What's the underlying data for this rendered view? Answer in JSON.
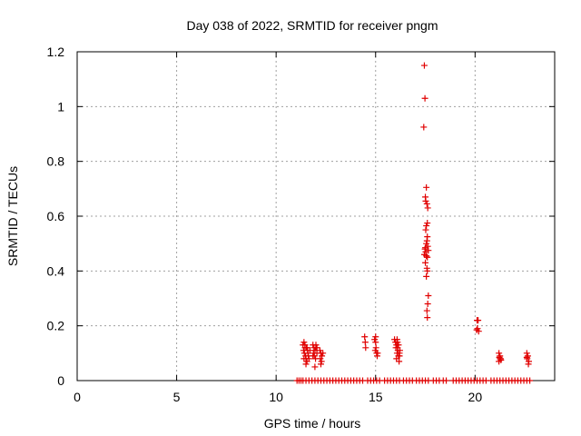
{
  "chart_data": {
    "type": "scatter",
    "title": "Day 038 of 2022, SRMTID for receiver pngm",
    "xlabel": "GPS time / hours",
    "ylabel": "SRMTID / TECUs",
    "xlim": [
      0,
      24
    ],
    "ylim": [
      0,
      1.2
    ],
    "x_ticks": [
      0,
      5,
      10,
      15,
      20
    ],
    "x_tick_labels": [
      "0",
      "5",
      "10",
      "15",
      "20"
    ],
    "y_ticks": [
      0,
      0.2,
      0.4,
      0.6,
      0.8,
      1.0,
      1.2
    ],
    "y_tick_labels": [
      "0",
      "0.2",
      "0.4",
      "0.6",
      "0.8",
      "1",
      "1.2"
    ],
    "grid": true,
    "marker": "plus",
    "color": "#e00000",
    "series": [
      {
        "points": [
          [
            11.05,
            0
          ],
          [
            11.15,
            0
          ],
          [
            11.25,
            0
          ],
          [
            11.35,
            0
          ],
          [
            11.5,
            0
          ],
          [
            11.65,
            0
          ],
          [
            11.8,
            0
          ],
          [
            11.95,
            0
          ],
          [
            12.1,
            0
          ],
          [
            12.25,
            0
          ],
          [
            12.4,
            0
          ],
          [
            12.55,
            0
          ],
          [
            12.7,
            0
          ],
          [
            12.85,
            0
          ],
          [
            13.0,
            0
          ],
          [
            13.15,
            0
          ],
          [
            13.3,
            0
          ],
          [
            13.45,
            0
          ],
          [
            13.6,
            0
          ],
          [
            13.75,
            0
          ],
          [
            13.9,
            0
          ],
          [
            14.05,
            0
          ],
          [
            14.2,
            0
          ],
          [
            14.35,
            0
          ],
          [
            14.6,
            0
          ],
          [
            14.75,
            0
          ],
          [
            14.9,
            0
          ],
          [
            15.05,
            0
          ],
          [
            15.2,
            0
          ],
          [
            15.45,
            0
          ],
          [
            15.6,
            0
          ],
          [
            15.75,
            0
          ],
          [
            15.9,
            0
          ],
          [
            16.05,
            0
          ],
          [
            16.2,
            0
          ],
          [
            16.4,
            0
          ],
          [
            16.55,
            0
          ],
          [
            16.7,
            0
          ],
          [
            16.85,
            0
          ],
          [
            17.05,
            0
          ],
          [
            17.2,
            0
          ],
          [
            17.35,
            0
          ],
          [
            17.5,
            0
          ],
          [
            17.65,
            0
          ],
          [
            17.9,
            0
          ],
          [
            18.05,
            0
          ],
          [
            18.2,
            0
          ],
          [
            18.4,
            0
          ],
          [
            18.55,
            0
          ],
          [
            18.9,
            0
          ],
          [
            19.05,
            0
          ],
          [
            19.2,
            0
          ],
          [
            19.35,
            0
          ],
          [
            19.5,
            0
          ],
          [
            19.65,
            0
          ],
          [
            19.8,
            0
          ],
          [
            19.95,
            0
          ],
          [
            20.1,
            0
          ],
          [
            20.25,
            0
          ],
          [
            20.4,
            0
          ],
          [
            20.55,
            0
          ],
          [
            20.8,
            0
          ],
          [
            20.95,
            0
          ],
          [
            21.1,
            0
          ],
          [
            21.25,
            0
          ],
          [
            21.4,
            0
          ],
          [
            21.55,
            0
          ],
          [
            21.7,
            0
          ],
          [
            21.85,
            0
          ],
          [
            22.0,
            0
          ],
          [
            22.15,
            0
          ],
          [
            22.3,
            0
          ],
          [
            22.45,
            0
          ],
          [
            22.6,
            0
          ],
          [
            22.75,
            0
          ],
          [
            11.35,
            0.13
          ],
          [
            11.4,
            0.14
          ],
          [
            11.45,
            0.12
          ],
          [
            11.38,
            0.11
          ],
          [
            11.42,
            0.1
          ],
          [
            11.48,
            0.09
          ],
          [
            11.4,
            0.08
          ],
          [
            11.55,
            0.07
          ],
          [
            11.5,
            0.08
          ],
          [
            11.6,
            0.1
          ],
          [
            11.45,
            0.13
          ],
          [
            11.52,
            0.12
          ],
          [
            11.58,
            0.11
          ],
          [
            11.62,
            0.09
          ],
          [
            11.55,
            0.12
          ],
          [
            11.65,
            0.08
          ],
          [
            11.5,
            0.06
          ],
          [
            11.7,
            0.11
          ],
          [
            11.85,
            0.13
          ],
          [
            11.9,
            0.12
          ],
          [
            11.95,
            0.11
          ],
          [
            12.0,
            0.12
          ],
          [
            11.88,
            0.1
          ],
          [
            11.92,
            0.09
          ],
          [
            11.98,
            0.08
          ],
          [
            12.05,
            0.1
          ],
          [
            11.95,
            0.05
          ],
          [
            12.0,
            0.13
          ],
          [
            12.05,
            0.12
          ],
          [
            11.85,
            0.09
          ],
          [
            12.2,
            0.11
          ],
          [
            12.25,
            0.1
          ],
          [
            12.3,
            0.09
          ],
          [
            12.22,
            0.08
          ],
          [
            12.28,
            0.07
          ],
          [
            12.35,
            0.1
          ],
          [
            12.25,
            0.06
          ],
          [
            14.45,
            0.16
          ],
          [
            14.48,
            0.14
          ],
          [
            14.5,
            0.12
          ],
          [
            14.95,
            0.15
          ],
          [
            15.0,
            0.14
          ],
          [
            15.02,
            0.12
          ],
          [
            14.98,
            0.11
          ],
          [
            15.05,
            0.1
          ],
          [
            15.08,
            0.09
          ],
          [
            15.0,
            0.16
          ],
          [
            15.1,
            0.1
          ],
          [
            15.95,
            0.15
          ],
          [
            16.0,
            0.14
          ],
          [
            16.05,
            0.13
          ],
          [
            16.1,
            0.12
          ],
          [
            16.12,
            0.11
          ],
          [
            16.08,
            0.1
          ],
          [
            16.15,
            0.09
          ],
          [
            16.2,
            0.1
          ],
          [
            16.05,
            0.08
          ],
          [
            16.18,
            0.07
          ],
          [
            16.1,
            0.14
          ],
          [
            16.02,
            0.12
          ],
          [
            16.22,
            0.11
          ],
          [
            16.15,
            0.13
          ],
          [
            16.08,
            0.15
          ],
          [
            16.2,
            0.09
          ],
          [
            17.45,
            1.15
          ],
          [
            17.48,
            1.03
          ],
          [
            17.42,
            0.925
          ],
          [
            17.55,
            0.705
          ],
          [
            17.5,
            0.67
          ],
          [
            17.52,
            0.655
          ],
          [
            17.58,
            0.645
          ],
          [
            17.62,
            0.63
          ],
          [
            17.6,
            0.575
          ],
          [
            17.55,
            0.565
          ],
          [
            17.52,
            0.55
          ],
          [
            17.6,
            0.525
          ],
          [
            17.58,
            0.51
          ],
          [
            17.55,
            0.5
          ],
          [
            17.62,
            0.49
          ],
          [
            17.5,
            0.485
          ],
          [
            17.48,
            0.48
          ],
          [
            17.65,
            0.475
          ],
          [
            17.52,
            0.47
          ],
          [
            17.45,
            0.46
          ],
          [
            17.55,
            0.455
          ],
          [
            17.6,
            0.45
          ],
          [
            17.5,
            0.43
          ],
          [
            17.58,
            0.41
          ],
          [
            17.6,
            0.4
          ],
          [
            17.55,
            0.38
          ],
          [
            17.65,
            0.31
          ],
          [
            17.62,
            0.28
          ],
          [
            17.58,
            0.255
          ],
          [
            17.6,
            0.23
          ],
          [
            20.1,
            0.22
          ],
          [
            20.15,
            0.22
          ],
          [
            20.12,
            0.19
          ],
          [
            20.18,
            0.18
          ],
          [
            20.08,
            0.185
          ],
          [
            21.2,
            0.1
          ],
          [
            21.25,
            0.09
          ],
          [
            21.22,
            0.085
          ],
          [
            21.28,
            0.08
          ],
          [
            21.3,
            0.075
          ],
          [
            21.2,
            0.07
          ],
          [
            21.25,
            0.08
          ],
          [
            22.6,
            0.1
          ],
          [
            22.65,
            0.09
          ],
          [
            22.62,
            0.08
          ],
          [
            22.7,
            0.07
          ],
          [
            22.68,
            0.06
          ],
          [
            22.6,
            0.085
          ]
        ]
      }
    ]
  }
}
